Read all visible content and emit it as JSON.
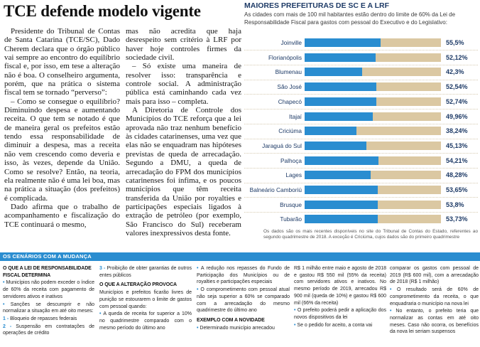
{
  "page": {
    "headline": "TCE defende modelo vigente"
  },
  "article": {
    "column1": [
      "Presidente do Tribunal de Contas de Santa Catarina (TCE/SC), Dado Cherem declara que o órgão público vai sempre ao encontro do equilíbrio fiscal e, por isso, em tese a alteração não é boa. O conselheiro argumenta, porém, que na prática o sistema fiscal tem se tornado “perverso”:",
      "– Como se consegue o equilíbrio? Diminuindo despesa e aumentando receita. O que tem se notado é que de maneira geral os prefeitos estão tendo essa responsabilidade de diminuir a despesa, mas a receita não vem crescendo como deveria e isso, às vezes, depende da União. Como se resolve? Então, na teoria, ela realmente não é uma lei boa, mas na prática a situação (dos prefeitos) é complicada.",
      "Dado afirma que o trabalho de acompanhamento e fiscalização do TCE continuará o mesmo,"
    ],
    "column2": [
      "mas não acredita que haja desrespeito sem critério à LRF por haver hoje controles firmes da sociedade civil.",
      "– Só existe uma maneira de resolver isso: transparência e controle social. A administração pública está caminhando cada vez mais para isso – completa.",
      "A Diretoria de Controle dos Municípios do TCE reforça que a lei aprovada não traz nenhum benefício às cidades catarinenses, uma vez que elas não se enquadram nas hipóteses previstas de queda de arrecadação. Segundo a DMU, a queda de arrecadação do FPM dos municípios catarinenses foi ínfima, e os poucos municípios que têm receita transferida da União por royalties e participações especiais ligados à extração de petróleo (por exemplo, São Francisco do Sul) receberam valores inexpressivos desta fonte."
    ]
  },
  "chart_data": {
    "type": "bar",
    "orientation": "horizontal",
    "title": "MAIORES PREFEITURAS DE SC E A LRF",
    "subtitle": "As cidades com mais de 100 mil habitantes estão dentro do limite de 60% da Lei de Responsabilidade Fiscal para gastos com pessoal do Executivo e do Legislativo:",
    "categories": [
      "Joinville",
      "Florianópolis",
      "Blumenau",
      "São José",
      "Chapecó",
      "Itajaí",
      "Criciúma",
      "Jaraguá do Sul",
      "Palhoça",
      "Lages",
      "Balneário Camboriú",
      "Brusque",
      "Tubarão"
    ],
    "values": [
      55.5,
      52.12,
      42.3,
      52.54,
      52.74,
      49.96,
      38.24,
      45.13,
      54.21,
      48.28,
      53.65,
      53.8,
      53.73
    ],
    "value_labels": [
      "55,5%",
      "52,12%",
      "42,3%",
      "52,54%",
      "52,74%",
      "49,96%",
      "38,24%",
      "45,13%",
      "54,21%",
      "48,28%",
      "53,65%",
      "53,8%",
      "53,73%"
    ],
    "xlim": [
      0,
      100
    ],
    "unit": "%",
    "xlabel": "",
    "ylabel": "",
    "grid": false,
    "legend": "none",
    "note": "Os dados são os mais recentes disponíveis no site do Tribunal de Contas do Estado, referentes ao segundo quadrimestre de 2018. A exceção é Criciúma, cujos dados são do primeiro quadrimestre"
  },
  "scenarios": {
    "header": "OS CENÁRIOS COM A MUDANÇA",
    "law": {
      "heading": "O QUE A LEI DE RESPONSABILIDADE FISCAL DETERMINA",
      "items": [
        "Municípios não podem exceder o índice de 60% da receita com pagamento de servidores ativos e inativos",
        "Sanções se descumprir e não normalizar a situação em até oito meses:"
      ],
      "sanctions": [
        {
          "num": "1 -",
          "text": "Bloqueio de repasses federais"
        },
        {
          "num": "2 -",
          "text": "Suspensão em contratações de operações de crédito"
        },
        {
          "num": "3 -",
          "text": "Proibição de obter garantias de outros entes públicos"
        }
      ]
    },
    "change": {
      "heading": "O QUE A ALTERAÇÃO PROVOCA",
      "intro": "Municípios e prefeitos ficarão livres de punição se estourarem o limite de gastos com pessoal quando:",
      "conditions": [
        "A queda de receita for superior a 10% no quadrimestre comparado com o mesmo período do último ano",
        "A redução nos repasses do Fundo de Participação dos Municípios ou de royalties e participações especiais",
        "O comprometimento com pessoal atual não seja superior a 60% se comparado com a arrecadação do mesmo quadrimestre do último ano"
      ]
    },
    "example": {
      "heading": "EXEMPLO COM A NOVIDADE",
      "blocks": [
        "Determinado município arrecadou",
        "R$ 1 milhão entre maio e agosto de 2018 e gastou R$ 550 mil (55% da receita) com servidores ativos e inativos. No mesmo período de 2019, arrecadou R$ 900 mil (queda de 10%) e gastou R$ 600 mil (66% da receita)",
        "O prefeito poderá pedir a aplicação dos novos dispositivos da lei",
        "Se o pedido for aceito, a conta vai",
        "comparar os gastos com pessoal de 2019 (R$ 600 mil), com a arrecadação de 2018 (R$ 1 milhão)",
        "O resultado será de 60% de comprometimento da receita, o que enquadraria o município na nova lei",
        "No entanto, o prefeito teria que normalizar as contas em até oito meses. Caso não ocorra, os benefícios da nova lei seriam suspensos"
      ]
    }
  },
  "colors": {
    "accent": "#2a8dd0",
    "bar_track": "#dbc8a2",
    "label_navy": "#1d3a66"
  }
}
